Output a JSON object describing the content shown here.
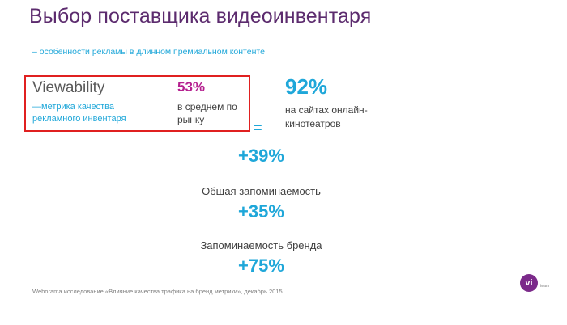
{
  "slide": {
    "title": "Выбор поставщика видеоинвентаря",
    "subtitle": "– особенности рекламы в длинном премиальном контенте",
    "viewability": {
      "title": "Viewability",
      "description": "—метрика качества рекламного инвентаря"
    },
    "market_average": {
      "value": "53%",
      "label": "в среднем по рынку"
    },
    "cinema_sites": {
      "value": "92%",
      "label": "на сайтах онлайн-кинотеатров"
    },
    "equals_sign": "=",
    "metrics": [
      {
        "label": "",
        "value": "+39%"
      },
      {
        "label": "Общая запоминаемость",
        "value": "+35%"
      },
      {
        "label": "Запоминаемость бренда",
        "value": "+75%"
      }
    ],
    "footnote": "Weborama исследование «Влияние качества трафика на бренд метрики», декабрь 2015",
    "logo": {
      "mark": "vi",
      "tail": "team"
    }
  },
  "colors": {
    "title": "#5c2b6e",
    "accent_blue": "#1fa7d9",
    "accent_magenta": "#b5208f",
    "highlight_border": "#e02020",
    "logo": "#7b2a8a"
  }
}
